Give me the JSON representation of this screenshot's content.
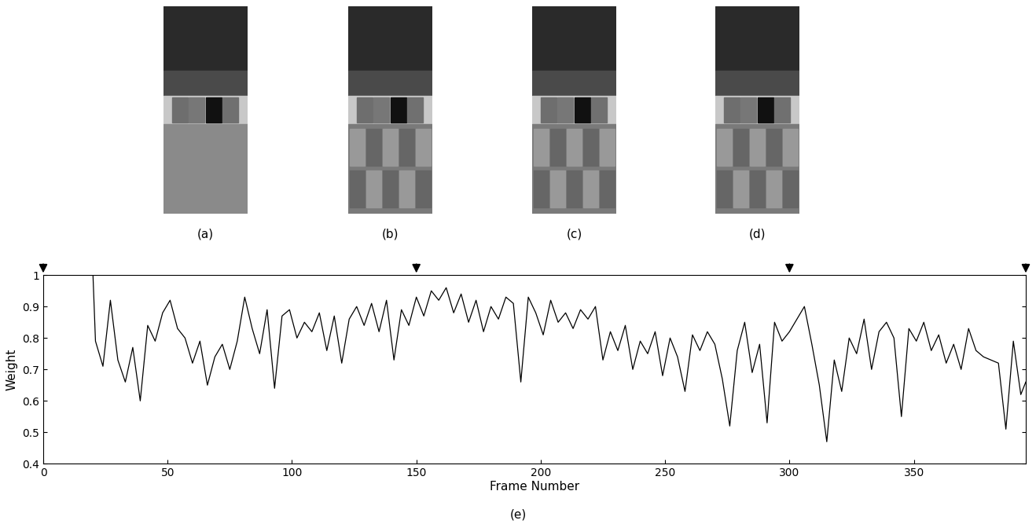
{
  "panels": [
    "(a)",
    "(b)",
    "(c)",
    "(d)"
  ],
  "caption": "(e)",
  "chart_data": {
    "type": "line",
    "x_label": "Frame Number",
    "y_label": "Weight",
    "x": [
      0,
      20,
      21,
      24,
      27,
      30,
      33,
      36,
      39,
      42,
      45,
      48,
      51,
      54,
      57,
      60,
      63,
      66,
      69,
      72,
      75,
      78,
      81,
      84,
      87,
      90,
      93,
      96,
      99,
      102,
      105,
      108,
      111,
      114,
      117,
      120,
      123,
      126,
      129,
      132,
      135,
      138,
      141,
      144,
      147,
      150,
      153,
      156,
      159,
      162,
      165,
      168,
      171,
      174,
      177,
      180,
      183,
      186,
      189,
      192,
      195,
      198,
      201,
      204,
      207,
      210,
      213,
      216,
      219,
      222,
      225,
      228,
      231,
      234,
      237,
      240,
      243,
      246,
      249,
      252,
      255,
      258,
      261,
      264,
      267,
      270,
      273,
      276,
      279,
      282,
      285,
      288,
      291,
      294,
      297,
      300,
      303,
      306,
      309,
      312,
      315,
      318,
      321,
      324,
      327,
      330,
      333,
      336,
      339,
      342,
      345,
      348,
      351,
      354,
      357,
      360,
      363,
      366,
      369,
      372,
      375,
      378,
      381,
      384,
      387,
      390,
      393,
      395
    ],
    "values": [
      1.0,
      1.0,
      0.79,
      0.71,
      0.92,
      0.73,
      0.66,
      0.77,
      0.6,
      0.84,
      0.79,
      0.88,
      0.92,
      0.83,
      0.8,
      0.72,
      0.79,
      0.65,
      0.74,
      0.78,
      0.7,
      0.79,
      0.93,
      0.83,
      0.75,
      0.89,
      0.64,
      0.87,
      0.89,
      0.8,
      0.85,
      0.82,
      0.88,
      0.76,
      0.87,
      0.72,
      0.86,
      0.9,
      0.84,
      0.91,
      0.82,
      0.92,
      0.73,
      0.89,
      0.84,
      0.93,
      0.87,
      0.95,
      0.92,
      0.96,
      0.88,
      0.94,
      0.85,
      0.92,
      0.82,
      0.9,
      0.86,
      0.93,
      0.91,
      0.66,
      0.93,
      0.88,
      0.81,
      0.92,
      0.85,
      0.88,
      0.83,
      0.89,
      0.86,
      0.9,
      0.73,
      0.82,
      0.76,
      0.84,
      0.7,
      0.79,
      0.75,
      0.82,
      0.68,
      0.8,
      0.74,
      0.63,
      0.81,
      0.76,
      0.82,
      0.78,
      0.67,
      0.52,
      0.76,
      0.85,
      0.69,
      0.78,
      0.53,
      0.85,
      0.79,
      0.82,
      0.86,
      0.9,
      0.78,
      0.65,
      0.47,
      0.73,
      0.63,
      0.8,
      0.75,
      0.86,
      0.7,
      0.82,
      0.85,
      0.8,
      0.55,
      0.83,
      0.79,
      0.85,
      0.76,
      0.81,
      0.72,
      0.78,
      0.7,
      0.83,
      0.76,
      0.74,
      0.73,
      0.72,
      0.51,
      0.79,
      0.62,
      0.66
    ],
    "color": "#000000",
    "arrow_frames": [
      0,
      150,
      300,
      395
    ],
    "xlim": [
      0,
      395
    ],
    "ylim": [
      0.4,
      1
    ],
    "xticks": [
      0,
      50,
      100,
      150,
      200,
      250,
      300,
      350
    ],
    "yticks": [
      0.4,
      0.5,
      0.6,
      0.7,
      0.8,
      0.9,
      1
    ],
    "grid": false
  }
}
